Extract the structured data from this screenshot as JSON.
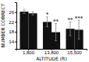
{
  "chart_data": {
    "type": "bar",
    "categories": [
      "1,800",
      "13,800",
      "15,500"
    ],
    "series": [
      {
        "color": "#111111",
        "values": [
          26.2,
          22.0,
          19.2
        ],
        "errors": [
          0.8,
          2.0,
          2.8
        ]
      },
      {
        "color": "#111111",
        "values": [
          25.5,
          17.8,
          18.8
        ],
        "errors": [
          0.7,
          3.5,
          3.8
        ]
      }
    ],
    "xlabel": "ALTITUDE (ft)",
    "ylabel": "NUMBER CORRECT",
    "ylim": [
      11,
      30
    ],
    "yticks": [
      14,
      18,
      22,
      26
    ],
    "annotations": [
      {
        "text": "*",
        "category": "13,800",
        "series": 0
      },
      {
        "text": "**",
        "category": "13,800",
        "series": 1
      },
      {
        "text": "**",
        "category": "15,500",
        "series": 0
      },
      {
        "text": "***",
        "category": "15,500",
        "series": 1
      }
    ]
  }
}
